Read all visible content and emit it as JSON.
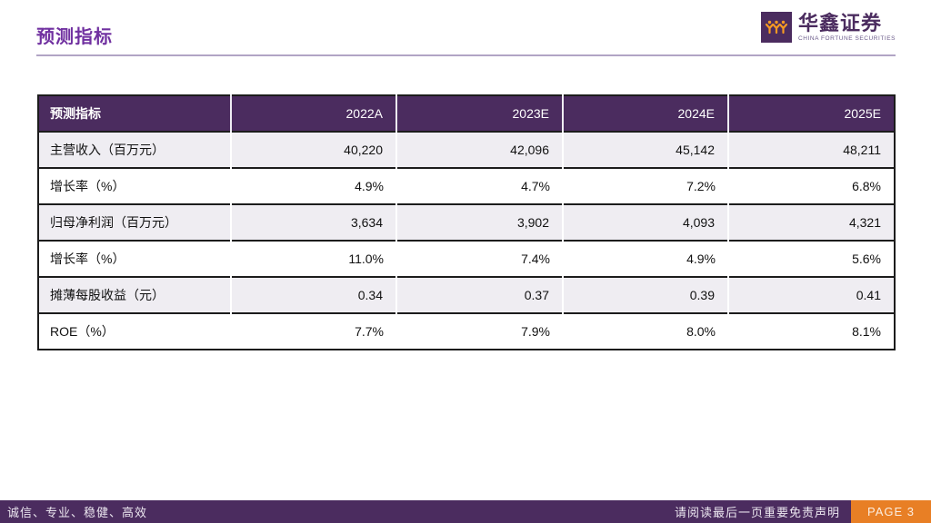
{
  "page": {
    "title": "预测指标",
    "logo": {
      "name": "华鑫证券",
      "tagline": "CHINA FORTUNE SECURITIES"
    },
    "footer": {
      "slogan": "诚信、专业、稳健、高效",
      "disclaimer": "请阅读最后一页重要免责声明",
      "page_label": "PAGE 3"
    },
    "colors": {
      "deep_purple": "#4B2C5F",
      "title_purple": "#7030A0",
      "accent_orange": "#E87F25",
      "alt_row_gray": "#EFEDF2",
      "rule_line": "#B1A5C5"
    }
  },
  "table": {
    "header": [
      "预测指标",
      "2022A",
      "2023E",
      "2024E",
      "2025E"
    ],
    "rows": [
      {
        "label": "主营收入（百万元）",
        "values": [
          "40,220",
          "42,096",
          "45,142",
          "48,211"
        ],
        "alt": true
      },
      {
        "label": "增长率（%）",
        "values": [
          "4.9%",
          "4.7%",
          "7.2%",
          "6.8%"
        ],
        "alt": false
      },
      {
        "label": "归母净利润（百万元）",
        "values": [
          "3,634",
          "3,902",
          "4,093",
          "4,321"
        ],
        "alt": true
      },
      {
        "label": "增长率（%）",
        "values": [
          "11.0%",
          "7.4%",
          "4.9%",
          "5.6%"
        ],
        "alt": false
      },
      {
        "label": "摊薄每股收益（元）",
        "values": [
          "0.34",
          "0.37",
          "0.39",
          "0.41"
        ],
        "alt": true
      },
      {
        "label": "ROE（%）",
        "values": [
          "7.7%",
          "7.9%",
          "8.0%",
          "8.1%"
        ],
        "alt": false
      }
    ]
  }
}
